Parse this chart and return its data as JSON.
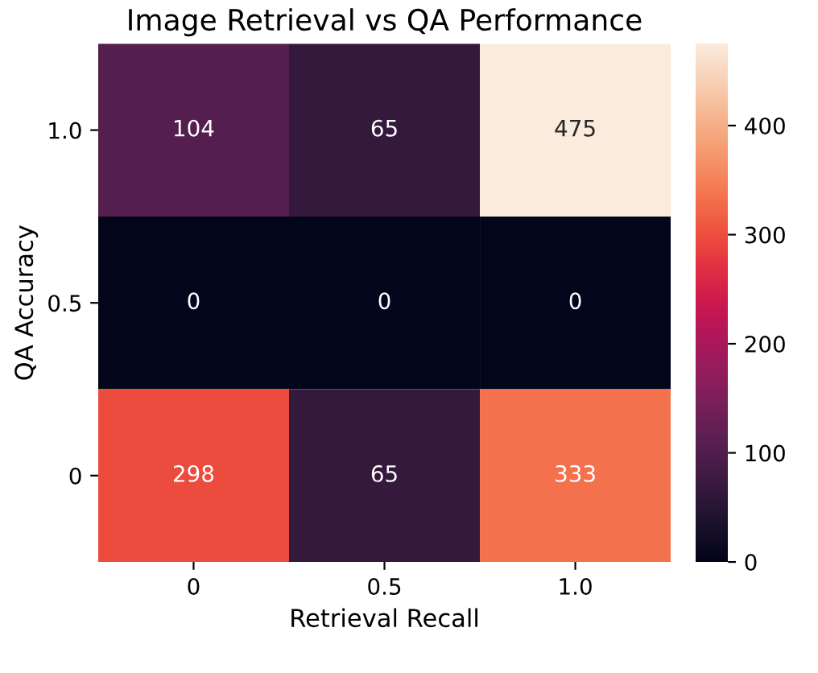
{
  "chart_data": {
    "type": "heatmap",
    "title": "Image Retrieval vs QA Performance",
    "xlabel": "Retrieval Recall",
    "ylabel": "QA Accuracy",
    "categories": [
      "0",
      "0.5",
      "1.0"
    ],
    "y_categories": [
      "1.0",
      "0.5",
      "0"
    ],
    "cells": [
      [
        104,
        65,
        475
      ],
      [
        0,
        0,
        0
      ],
      [
        298,
        65,
        333
      ]
    ],
    "clim": [
      0,
      475
    ],
    "cticks": [
      0,
      100,
      200,
      300,
      400
    ],
    "data_labels": true
  }
}
